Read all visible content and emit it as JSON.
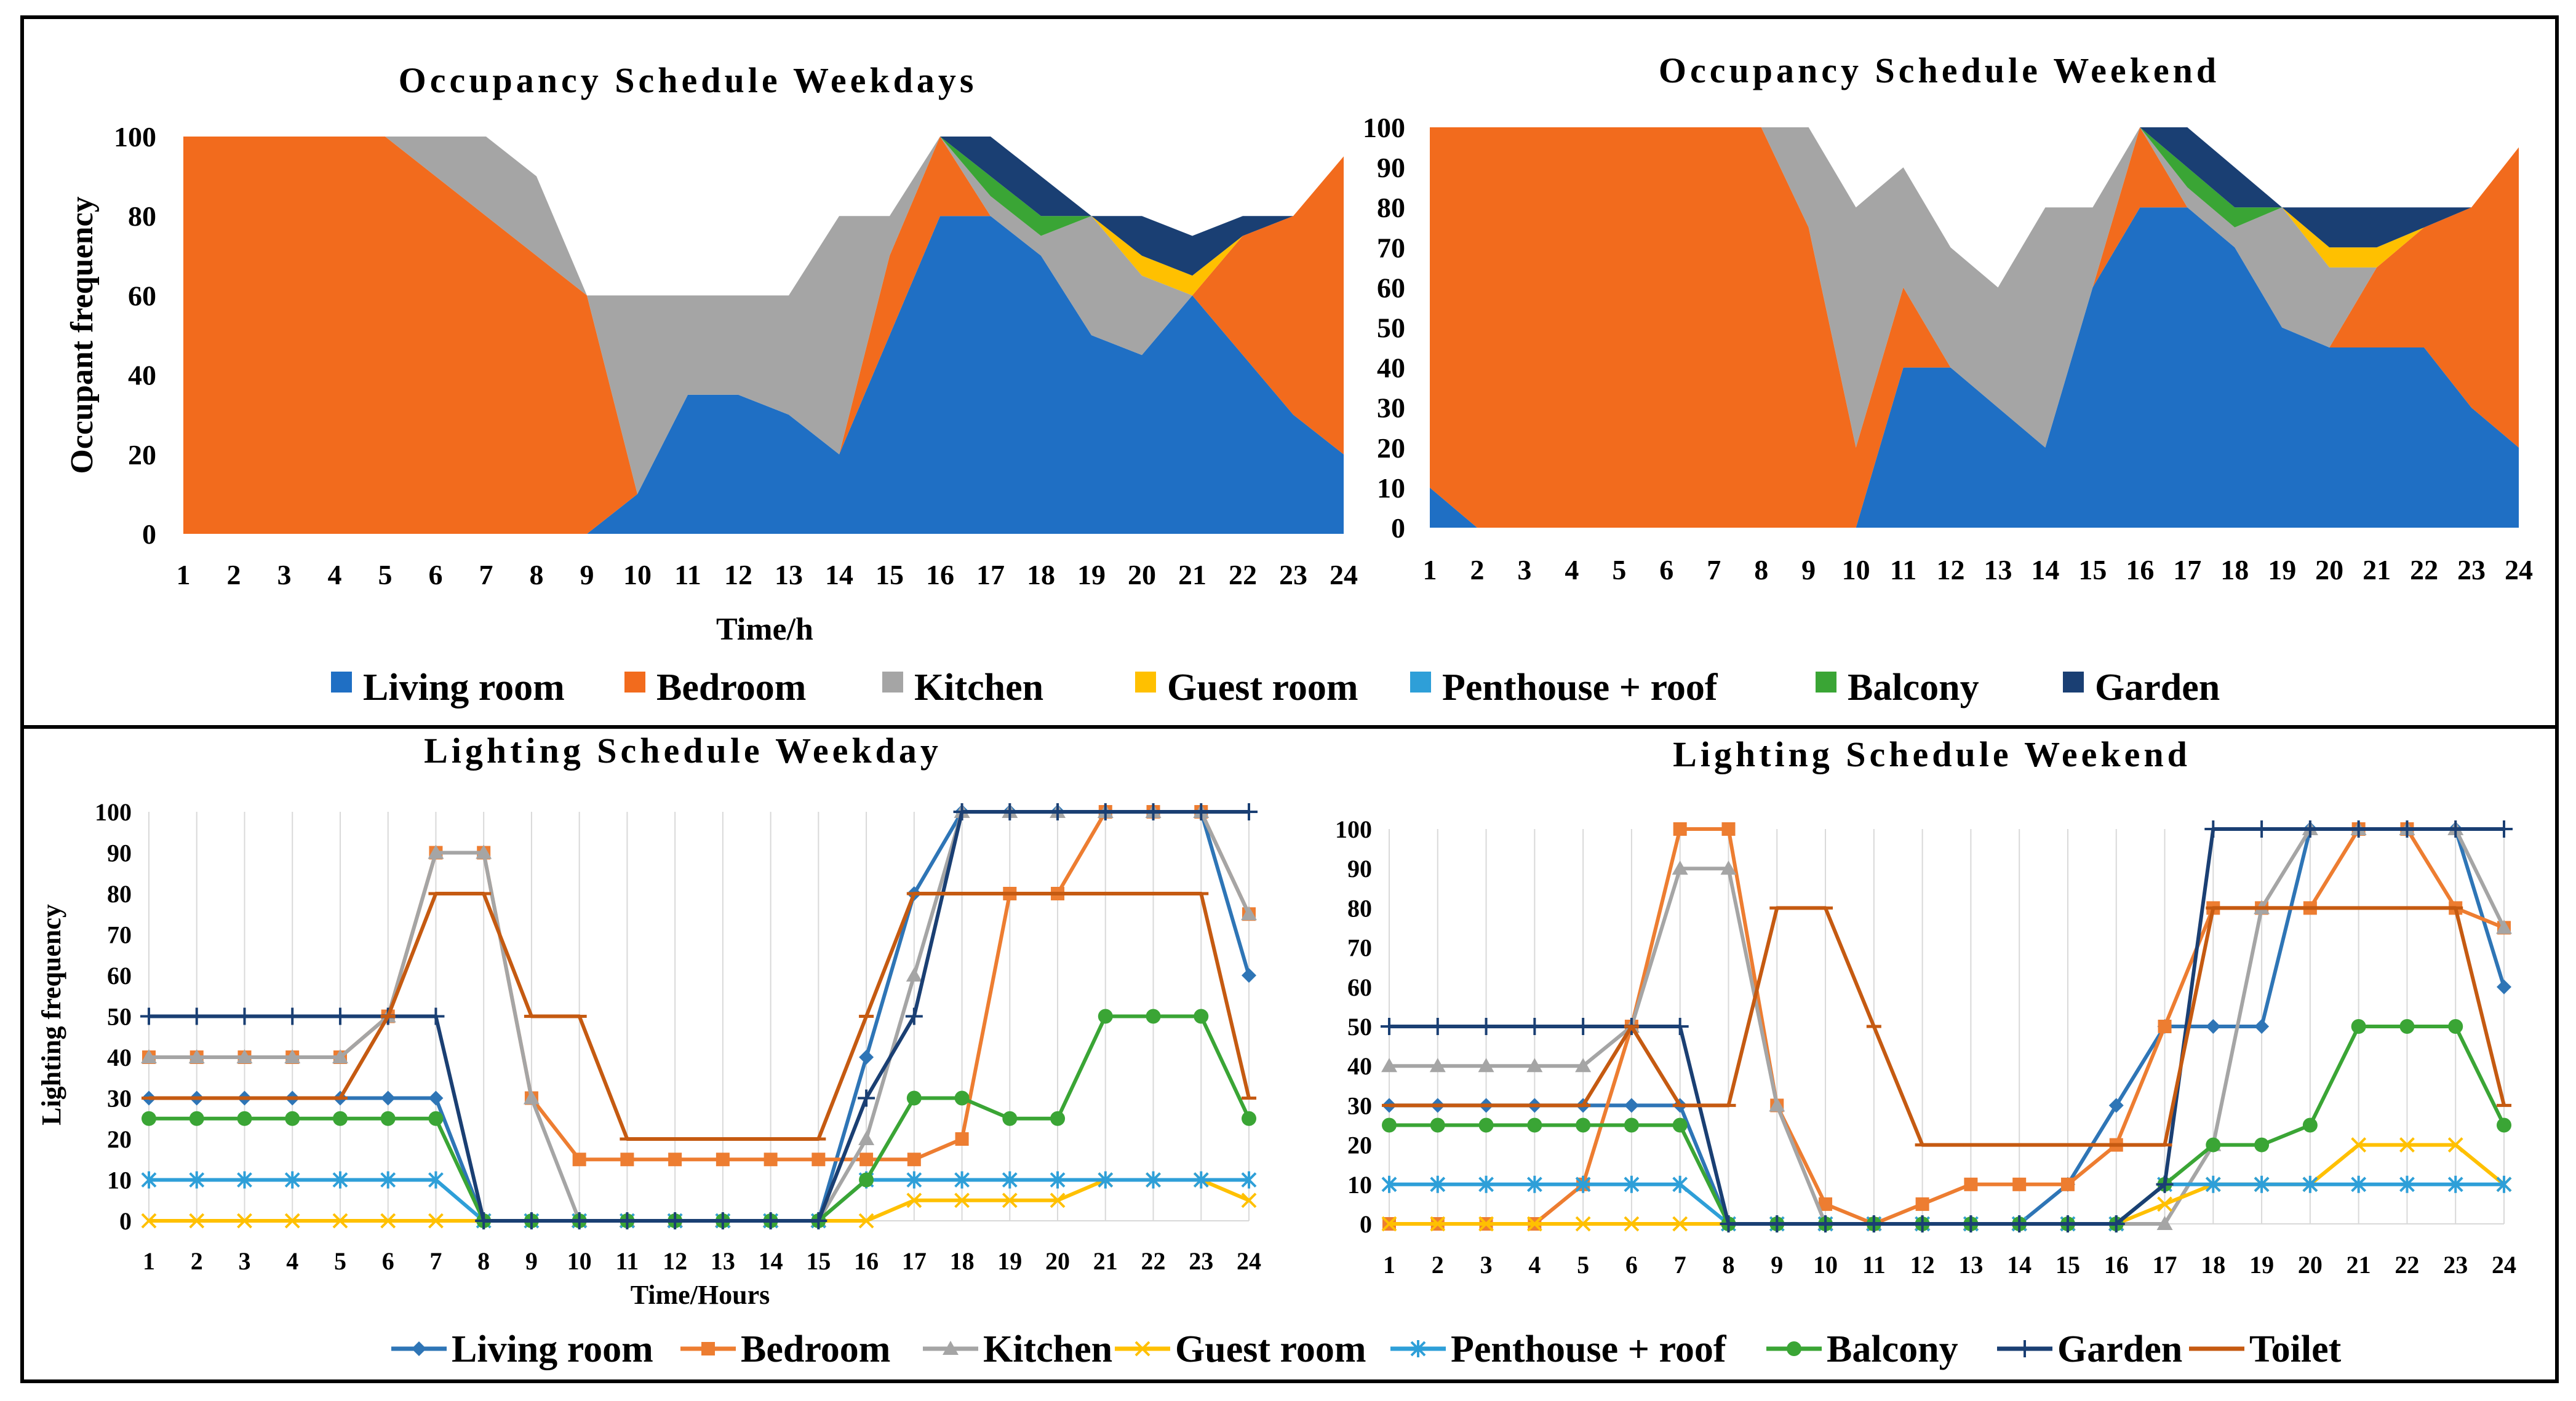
{
  "chart_data": [
    {
      "id": "occupancy_weekdays",
      "type": "area",
      "stacked": true,
      "title": "Occupancy Schedule Weekdays",
      "xlabel": "Time/h",
      "ylabel": "Occupant frequency",
      "categories": [
        "1",
        "2",
        "3",
        "4",
        "5",
        "6",
        "7",
        "8",
        "9",
        "10",
        "11",
        "12",
        "13",
        "14",
        "15",
        "16",
        "17",
        "18",
        "19",
        "20",
        "21",
        "22",
        "23",
        "24"
      ],
      "ylim": [
        0,
        100
      ],
      "yticks": [
        0,
        20,
        40,
        60,
        80,
        100
      ],
      "grid": false,
      "series": [
        {
          "name": "Living room",
          "color": "#1f6fc4",
          "values": [
            0,
            0,
            0,
            0,
            0,
            0,
            0,
            0,
            0,
            10,
            35,
            35,
            30,
            20,
            50,
            80,
            80,
            70,
            50,
            45,
            60,
            45,
            30,
            20
          ]
        },
        {
          "name": "Bedroom",
          "color": "#f26b1d",
          "values": [
            100,
            100,
            100,
            100,
            100,
            90,
            80,
            70,
            60,
            0,
            0,
            0,
            0,
            0,
            20,
            20,
            0,
            0,
            0,
            0,
            0,
            30,
            50,
            75
          ]
        },
        {
          "name": "Kitchen",
          "color": "#a5a5a5",
          "values": [
            0,
            0,
            0,
            0,
            0,
            10,
            20,
            20,
            0,
            50,
            25,
            25,
            30,
            60,
            10,
            0,
            5,
            5,
            30,
            20,
            0,
            0,
            0,
            0
          ]
        },
        {
          "name": "Guest room",
          "color": "#ffc000",
          "values": [
            0,
            0,
            0,
            0,
            0,
            0,
            0,
            0,
            0,
            0,
            0,
            0,
            0,
            0,
            0,
            0,
            0,
            0,
            0,
            5,
            5,
            0,
            0,
            0
          ]
        },
        {
          "name": "Penthouse + roof",
          "color": "#2e9fd8",
          "values": [
            0,
            0,
            0,
            0,
            0,
            0,
            0,
            0,
            0,
            0,
            0,
            0,
            0,
            0,
            0,
            0,
            0,
            0,
            0,
            0,
            0,
            0,
            0,
            0
          ]
        },
        {
          "name": "Balcony",
          "color": "#3aa535",
          "values": [
            0,
            0,
            0,
            0,
            0,
            0,
            0,
            0,
            0,
            0,
            0,
            0,
            0,
            0,
            0,
            0,
            5,
            5,
            0,
            0,
            0,
            0,
            0,
            0
          ]
        },
        {
          "name": "Garden",
          "color": "#1a3f73",
          "values": [
            0,
            0,
            0,
            0,
            0,
            0,
            0,
            0,
            0,
            0,
            0,
            0,
            0,
            0,
            0,
            0,
            10,
            10,
            0,
            10,
            10,
            5,
            0,
            0
          ]
        }
      ]
    },
    {
      "id": "occupancy_weekend",
      "type": "area",
      "stacked": true,
      "title": "Occupancy Schedule Weekend",
      "xlabel": "",
      "ylabel": "",
      "categories": [
        "1",
        "2",
        "3",
        "4",
        "5",
        "6",
        "7",
        "8",
        "9",
        "10",
        "11",
        "12",
        "13",
        "14",
        "15",
        "16",
        "17",
        "18",
        "19",
        "20",
        "21",
        "22",
        "23",
        "24"
      ],
      "ylim": [
        0,
        100
      ],
      "yticks": [
        0,
        10,
        20,
        30,
        40,
        50,
        60,
        70,
        80,
        90,
        100
      ],
      "grid": false,
      "series": [
        {
          "name": "Living room",
          "color": "#1f6fc4",
          "values": [
            10,
            0,
            0,
            0,
            0,
            0,
            0,
            0,
            0,
            0,
            40,
            40,
            30,
            20,
            60,
            80,
            80,
            70,
            50,
            45,
            45,
            45,
            30,
            20
          ]
        },
        {
          "name": "Bedroom",
          "color": "#f26b1d",
          "values": [
            90,
            100,
            100,
            100,
            100,
            100,
            100,
            100,
            75,
            20,
            20,
            0,
            0,
            0,
            0,
            20,
            0,
            0,
            0,
            0,
            20,
            30,
            50,
            75
          ]
        },
        {
          "name": "Kitchen",
          "color": "#a5a5a5",
          "values": [
            0,
            0,
            0,
            0,
            0,
            0,
            0,
            0,
            25,
            60,
            30,
            30,
            30,
            60,
            20,
            0,
            5,
            5,
            30,
            20,
            0,
            0,
            0,
            0
          ]
        },
        {
          "name": "Guest room",
          "color": "#ffc000",
          "values": [
            0,
            0,
            0,
            0,
            0,
            0,
            0,
            0,
            0,
            0,
            0,
            0,
            0,
            0,
            0,
            0,
            0,
            0,
            0,
            5,
            5,
            0,
            0,
            0
          ]
        },
        {
          "name": "Penthouse + roof",
          "color": "#2e9fd8",
          "values": [
            0,
            0,
            0,
            0,
            0,
            0,
            0,
            0,
            0,
            0,
            0,
            0,
            0,
            0,
            0,
            0,
            0,
            0,
            0,
            0,
            0,
            0,
            0,
            0
          ]
        },
        {
          "name": "Balcony",
          "color": "#3aa535",
          "values": [
            0,
            0,
            0,
            0,
            0,
            0,
            0,
            0,
            0,
            0,
            0,
            0,
            0,
            0,
            0,
            0,
            5,
            5,
            0,
            0,
            0,
            0,
            0,
            0
          ]
        },
        {
          "name": "Garden",
          "color": "#1a3f73",
          "values": [
            0,
            0,
            0,
            0,
            0,
            0,
            0,
            0,
            0,
            0,
            0,
            0,
            0,
            0,
            0,
            0,
            10,
            10,
            0,
            10,
            10,
            5,
            0,
            0
          ]
        }
      ]
    },
    {
      "id": "lighting_weekday",
      "type": "line",
      "title": "Lighting Schedule Weekday",
      "xlabel": "Time/Hours",
      "ylabel": "Lighting frequency",
      "categories": [
        "1",
        "2",
        "3",
        "4",
        "5",
        "6",
        "7",
        "8",
        "9",
        "10",
        "11",
        "12",
        "13",
        "14",
        "15",
        "16",
        "17",
        "18",
        "19",
        "20",
        "21",
        "22",
        "23",
        "24"
      ],
      "ylim": [
        0,
        100
      ],
      "yticks": [
        0,
        10,
        20,
        30,
        40,
        50,
        60,
        70,
        80,
        90,
        100
      ],
      "grid": "vertical",
      "series": [
        {
          "name": "Living room",
          "color": "#2e75b6",
          "marker": "diamond",
          "values": [
            30,
            30,
            30,
            30,
            30,
            30,
            30,
            0,
            0,
            0,
            0,
            0,
            0,
            0,
            0,
            40,
            80,
            100,
            100,
            100,
            100,
            100,
            100,
            60
          ]
        },
        {
          "name": "Bedroom",
          "color": "#ed7d31",
          "marker": "square",
          "values": [
            40,
            40,
            40,
            40,
            40,
            50,
            90,
            90,
            30,
            15,
            15,
            15,
            15,
            15,
            15,
            15,
            15,
            20,
            80,
            80,
            100,
            100,
            100,
            75
          ]
        },
        {
          "name": "Kitchen",
          "color": "#a5a5a5",
          "marker": "triangle",
          "values": [
            40,
            40,
            40,
            40,
            40,
            50,
            90,
            90,
            30,
            0,
            0,
            0,
            0,
            0,
            0,
            20,
            60,
            100,
            100,
            100,
            100,
            100,
            100,
            75
          ]
        },
        {
          "name": "Guest room",
          "color": "#ffc000",
          "marker": "x",
          "values": [
            0,
            0,
            0,
            0,
            0,
            0,
            0,
            0,
            0,
            0,
            0,
            0,
            0,
            0,
            0,
            0,
            5,
            5,
            5,
            5,
            10,
            10,
            10,
            5
          ]
        },
        {
          "name": "Penthouse + roof",
          "color": "#2e9fd8",
          "marker": "star",
          "values": [
            10,
            10,
            10,
            10,
            10,
            10,
            10,
            0,
            0,
            0,
            0,
            0,
            0,
            0,
            0,
            10,
            10,
            10,
            10,
            10,
            10,
            10,
            10,
            10
          ]
        },
        {
          "name": "Balcony",
          "color": "#3aa535",
          "marker": "circle",
          "values": [
            25,
            25,
            25,
            25,
            25,
            25,
            25,
            0,
            0,
            0,
            0,
            0,
            0,
            0,
            0,
            10,
            30,
            30,
            25,
            25,
            50,
            50,
            50,
            25
          ]
        },
        {
          "name": "Garden",
          "color": "#1a3f73",
          "marker": "plus",
          "values": [
            50,
            50,
            50,
            50,
            50,
            50,
            50,
            0,
            0,
            0,
            0,
            0,
            0,
            0,
            0,
            30,
            50,
            100,
            100,
            100,
            100,
            100,
            100,
            100
          ]
        },
        {
          "name": "Toilet",
          "color": "#c55a11",
          "marker": "dash",
          "values": [
            30,
            30,
            30,
            30,
            30,
            50,
            80,
            80,
            50,
            50,
            20,
            20,
            20,
            20,
            20,
            50,
            80,
            80,
            80,
            80,
            80,
            80,
            80,
            30
          ]
        }
      ]
    },
    {
      "id": "lighting_weekend",
      "type": "line",
      "title": "Lighting Schedule Weekend",
      "xlabel": "",
      "ylabel": "",
      "categories": [
        "1",
        "2",
        "3",
        "4",
        "5",
        "6",
        "7",
        "8",
        "9",
        "10",
        "11",
        "12",
        "13",
        "14",
        "15",
        "16",
        "17",
        "18",
        "19",
        "20",
        "21",
        "22",
        "23",
        "24"
      ],
      "ylim": [
        0,
        100
      ],
      "yticks": [
        0,
        10,
        20,
        30,
        40,
        50,
        60,
        70,
        80,
        90,
        100
      ],
      "grid": "vertical",
      "series": [
        {
          "name": "Living room",
          "color": "#2e75b6",
          "marker": "diamond",
          "values": [
            30,
            30,
            30,
            30,
            30,
            30,
            30,
            0,
            0,
            0,
            0,
            0,
            0,
            0,
            10,
            30,
            50,
            50,
            50,
            100,
            100,
            100,
            100,
            60
          ]
        },
        {
          "name": "Bedroom",
          "color": "#ed7d31",
          "marker": "square",
          "values": [
            0,
            0,
            0,
            0,
            10,
            50,
            100,
            100,
            30,
            5,
            0,
            5,
            10,
            10,
            10,
            20,
            50,
            80,
            80,
            80,
            100,
            100,
            80,
            75
          ]
        },
        {
          "name": "Kitchen",
          "color": "#a5a5a5",
          "marker": "triangle",
          "values": [
            40,
            40,
            40,
            40,
            40,
            50,
            90,
            90,
            30,
            0,
            0,
            0,
            0,
            0,
            0,
            0,
            0,
            20,
            80,
            100,
            100,
            100,
            100,
            75
          ]
        },
        {
          "name": "Guest room",
          "color": "#ffc000",
          "marker": "x",
          "values": [
            0,
            0,
            0,
            0,
            0,
            0,
            0,
            0,
            0,
            0,
            0,
            0,
            0,
            0,
            0,
            0,
            5,
            10,
            10,
            10,
            20,
            20,
            20,
            10
          ]
        },
        {
          "name": "Penthouse + roof",
          "color": "#2e9fd8",
          "marker": "star",
          "values": [
            10,
            10,
            10,
            10,
            10,
            10,
            10,
            0,
            0,
            0,
            0,
            0,
            0,
            0,
            0,
            0,
            10,
            10,
            10,
            10,
            10,
            10,
            10,
            10
          ]
        },
        {
          "name": "Balcony",
          "color": "#3aa535",
          "marker": "circle",
          "values": [
            25,
            25,
            25,
            25,
            25,
            25,
            25,
            0,
            0,
            0,
            0,
            0,
            0,
            0,
            0,
            0,
            10,
            20,
            20,
            25,
            50,
            50,
            50,
            25
          ]
        },
        {
          "name": "Garden",
          "color": "#1a3f73",
          "marker": "plus",
          "values": [
            50,
            50,
            50,
            50,
            50,
            50,
            50,
            0,
            0,
            0,
            0,
            0,
            0,
            0,
            0,
            0,
            10,
            100,
            100,
            100,
            100,
            100,
            100,
            100
          ]
        },
        {
          "name": "Toilet",
          "color": "#c55a11",
          "marker": "dash",
          "values": [
            30,
            30,
            30,
            30,
            30,
            50,
            30,
            30,
            80,
            80,
            50,
            20,
            20,
            20,
            20,
            20,
            20,
            80,
            80,
            80,
            80,
            80,
            80,
            30
          ]
        }
      ]
    }
  ],
  "legends": {
    "occupancy": [
      "Living room",
      "Bedroom",
      "Kitchen",
      "Guest room",
      "Penthouse + roof",
      "Balcony",
      "Garden"
    ],
    "lighting": [
      "Living room",
      "Bedroom",
      "Kitchen",
      "Guest room",
      "Penthouse + roof",
      "Balcony",
      "Garden",
      "Toilet"
    ]
  }
}
